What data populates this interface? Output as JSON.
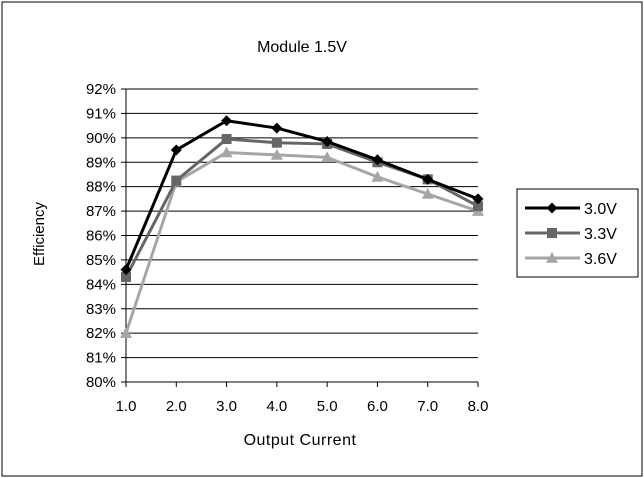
{
  "chart_data": {
    "type": "line",
    "title": "Module 1.5V",
    "xlabel": "Output Current",
    "ylabel": "Efficiency",
    "x": [
      "1.0",
      "2.0",
      "3.0",
      "4.0",
      "5.0",
      "6.0",
      "7.0",
      "8.0"
    ],
    "ylim": [
      80,
      92
    ],
    "yticks": [
      "80%",
      "81%",
      "82%",
      "83%",
      "84%",
      "85%",
      "86%",
      "87%",
      "88%",
      "89%",
      "90%",
      "91%",
      "92%"
    ],
    "grid": true,
    "legend_position": "right",
    "series": [
      {
        "name": "3.0V",
        "marker": "diamond",
        "color": "#000000",
        "values": [
          84.6,
          89.5,
          90.7,
          90.4,
          89.85,
          89.1,
          88.3,
          87.5
        ]
      },
      {
        "name": "3.3V",
        "marker": "square",
        "color": "#666666",
        "values": [
          84.3,
          88.25,
          89.95,
          89.8,
          89.75,
          89.0,
          88.3,
          87.2
        ]
      },
      {
        "name": "3.6V",
        "marker": "triangle",
        "color": "#a6a6a6",
        "values": [
          82.0,
          88.2,
          89.4,
          89.3,
          89.2,
          88.4,
          87.7,
          87.0
        ]
      }
    ]
  }
}
